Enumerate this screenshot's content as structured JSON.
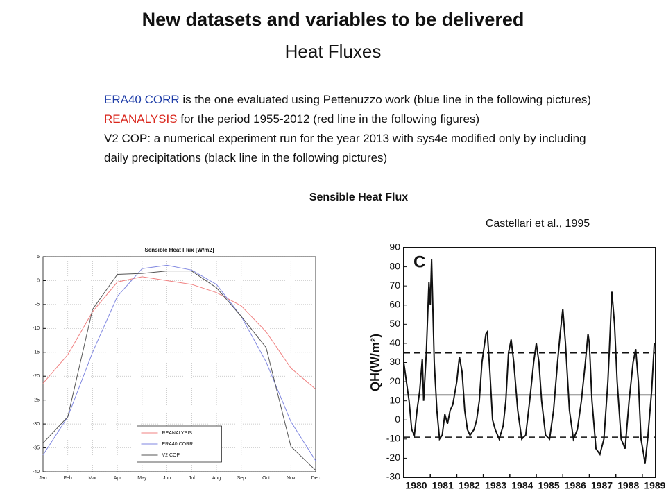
{
  "header": {
    "title": "New datasets and variables to be delivered",
    "subtitle": "Heat Fluxes"
  },
  "paragraphs": [
    {
      "highlight": "ERA40 CORR",
      "color": "#1f3ea8",
      "text": " is the one evaluated using Pettenuzzo work (blue line in the following pictures)"
    },
    {
      "highlight": "REANALYSIS",
      "color": "#d9261c",
      "text": " for the period 1955-2012 (red line in the following figures)"
    },
    {
      "highlight": null,
      "color": null,
      "text": "V2 COP: a numerical experiment run for the year 2013 with sys4e modified only by including"
    },
    {
      "highlight": null,
      "color": null,
      "text": "daily precipitations (black line in the following pictures)"
    }
  ],
  "section_title": "Sensible Heat Flux",
  "citation": "Castellari et al., 1995",
  "chart_data": [
    {
      "type": "line",
      "title": "Sensible Heat Flux [W/m2]",
      "categories": [
        "Jan",
        "Feb",
        "Mar",
        "Apr",
        "May",
        "Jun",
        "Jul",
        "Aug",
        "Sep",
        "Oct",
        "Nov",
        "Dec"
      ],
      "series": [
        {
          "name": "REANALYSIS",
          "color": "#f08080",
          "values": [
            -21.5,
            -15.5,
            -6.5,
            -0.3,
            0.8,
            0,
            -0.8,
            -2.5,
            -5.3,
            -10.7,
            -18.3,
            -22.7
          ]
        },
        {
          "name": "ERA40 CORR",
          "color": "#7f86e0",
          "values": [
            -36.5,
            -28.5,
            -15,
            -3.3,
            2.5,
            3.2,
            2.2,
            -0.8,
            -7.5,
            -17,
            -29.5,
            -37.7
          ]
        },
        {
          "name": "V2 COP",
          "color": "#555555",
          "values": [
            -34,
            -28.5,
            -6,
            1.3,
            1.5,
            2,
            2,
            -1.5,
            -7.5,
            -14,
            -34.7,
            -39.7
          ]
        }
      ],
      "ylim": [
        -40,
        5
      ],
      "yticks": [
        5,
        0,
        -5,
        -10,
        -15,
        -20,
        -25,
        -30,
        -35,
        -40
      ],
      "grid": true,
      "legend": "lower center"
    },
    {
      "type": "line",
      "annotation": "C",
      "ylabel": "QH(W/m²)",
      "x": [
        1980.0,
        1980.1,
        1980.2,
        1980.3,
        1980.4,
        1980.5,
        1980.6,
        1980.7,
        1980.75,
        1980.85,
        1980.95,
        1981.0,
        1981.05,
        1981.15,
        1981.25,
        1981.35,
        1981.45,
        1981.55,
        1981.65,
        1981.75,
        1981.85,
        1982.0,
        1982.1,
        1982.2,
        1982.3,
        1982.4,
        1982.5,
        1982.65,
        1982.75,
        1982.85,
        1982.95,
        1983.1,
        1983.15,
        1983.25,
        1983.35,
        1983.45,
        1983.6,
        1983.75,
        1983.85,
        1983.95,
        1984.05,
        1984.15,
        1984.3,
        1984.45,
        1984.6,
        1984.75,
        1984.9,
        1985.0,
        1985.1,
        1985.2,
        1985.35,
        1985.5,
        1985.65,
        1985.8,
        1985.9,
        1986.0,
        1986.1,
        1986.25,
        1986.4,
        1986.55,
        1986.7,
        1986.85,
        1986.95,
        1987.0,
        1987.1,
        1987.25,
        1987.4,
        1987.55,
        1987.7,
        1987.75,
        1987.85,
        1987.95,
        1988.05,
        1988.2,
        1988.35,
        1988.5,
        1988.65,
        1988.75,
        1988.85,
        1988.95,
        1989.05,
        1989.1,
        1989.2,
        1989.35,
        1989.45
      ],
      "series": [
        {
          "name": null,
          "color": "#111111",
          "values": [
            30,
            20,
            10,
            -5,
            -8,
            5,
            15,
            32,
            10,
            35,
            72,
            60,
            84,
            30,
            5,
            -10,
            -8,
            3,
            -2,
            5,
            8,
            20,
            33,
            25,
            5,
            -5,
            -8,
            -5,
            0,
            10,
            30,
            45,
            46,
            25,
            0,
            -5,
            -10,
            -3,
            10,
            35,
            42,
            30,
            5,
            -10,
            -8,
            10,
            30,
            40,
            30,
            10,
            -8,
            -10,
            5,
            30,
            45,
            58,
            40,
            5,
            -10,
            -5,
            10,
            30,
            45,
            40,
            10,
            -15,
            -18,
            -10,
            20,
            35,
            67,
            50,
            20,
            -10,
            -15,
            10,
            30,
            37,
            20,
            -10,
            -18,
            -23,
            -10,
            15,
            40
          ]
        }
      ],
      "reference_lines": [
        {
          "value": 35,
          "style": "dashed"
        },
        {
          "value": 13,
          "style": "solid"
        },
        {
          "value": -9,
          "style": "dashed"
        }
      ],
      "xlim": [
        1980,
        1989.5
      ],
      "xticks": [
        1980,
        1981,
        1982,
        1983,
        1984,
        1985,
        1986,
        1987,
        1988,
        1989
      ],
      "ylim": [
        -30,
        90
      ],
      "yticks": [
        90,
        80,
        70,
        60,
        50,
        40,
        30,
        20,
        10,
        0,
        -10,
        -20,
        -30
      ]
    }
  ]
}
